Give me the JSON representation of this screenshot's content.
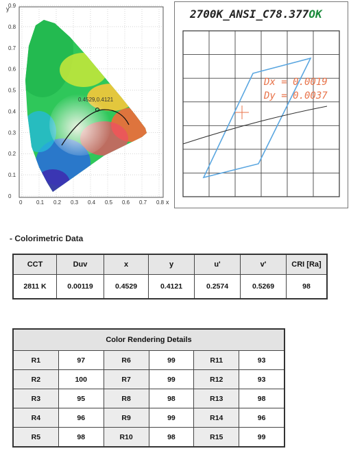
{
  "cie_chart": {
    "axis_x_label": "x",
    "axis_y_label": "y",
    "x_ticks": [
      "0",
      "0.1",
      "0.2",
      "0.3",
      "0.4",
      "0.5",
      "0.6",
      "0.7",
      "0.8"
    ],
    "y_ticks": [
      "0",
      "0.1",
      "0.2",
      "0.3",
      "0.4",
      "0.5",
      "0.6",
      "0.7",
      "0.8",
      "0.9"
    ],
    "point_label": "0.4529,0.4121"
  },
  "zoom_panel": {
    "title": "2700K_ANSI_C78.377",
    "status": "OK",
    "dx_text": "Dx = 0.0019",
    "dy_text": "Dy = 0.0037"
  },
  "section_title": "- Colorimetric Data",
  "colorimetric": {
    "headers": [
      "CCT",
      "Duv",
      "x",
      "y",
      "u'",
      "v'",
      "CRI [Ra]"
    ],
    "values": [
      "2811 K",
      "0.00119",
      "0.4529",
      "0.4121",
      "0.2574",
      "0.5269",
      "98"
    ]
  },
  "cri_details": {
    "title": "Color Rendering Details",
    "rows": [
      [
        {
          "label": "R1",
          "value": "97"
        },
        {
          "label": "R6",
          "value": "99"
        },
        {
          "label": "R11",
          "value": "93"
        }
      ],
      [
        {
          "label": "R2",
          "value": "100"
        },
        {
          "label": "R7",
          "value": "99"
        },
        {
          "label": "R12",
          "value": "93"
        }
      ],
      [
        {
          "label": "R3",
          "value": "95"
        },
        {
          "label": "R8",
          "value": "98"
        },
        {
          "label": "R13",
          "value": "98"
        }
      ],
      [
        {
          "label": "R4",
          "value": "96"
        },
        {
          "label": "R9",
          "value": "99"
        },
        {
          "label": "R14",
          "value": "96"
        }
      ],
      [
        {
          "label": "R5",
          "value": "98"
        },
        {
          "label": "R10",
          "value": "98"
        },
        {
          "label": "R15",
          "value": "99"
        }
      ]
    ]
  },
  "colors": {
    "ok_green": "#1a8a3a",
    "dxdy_orange": "#e8734a",
    "ansi_quad_blue": "#5aa6e0",
    "header_gray": "#e6e6e6"
  }
}
